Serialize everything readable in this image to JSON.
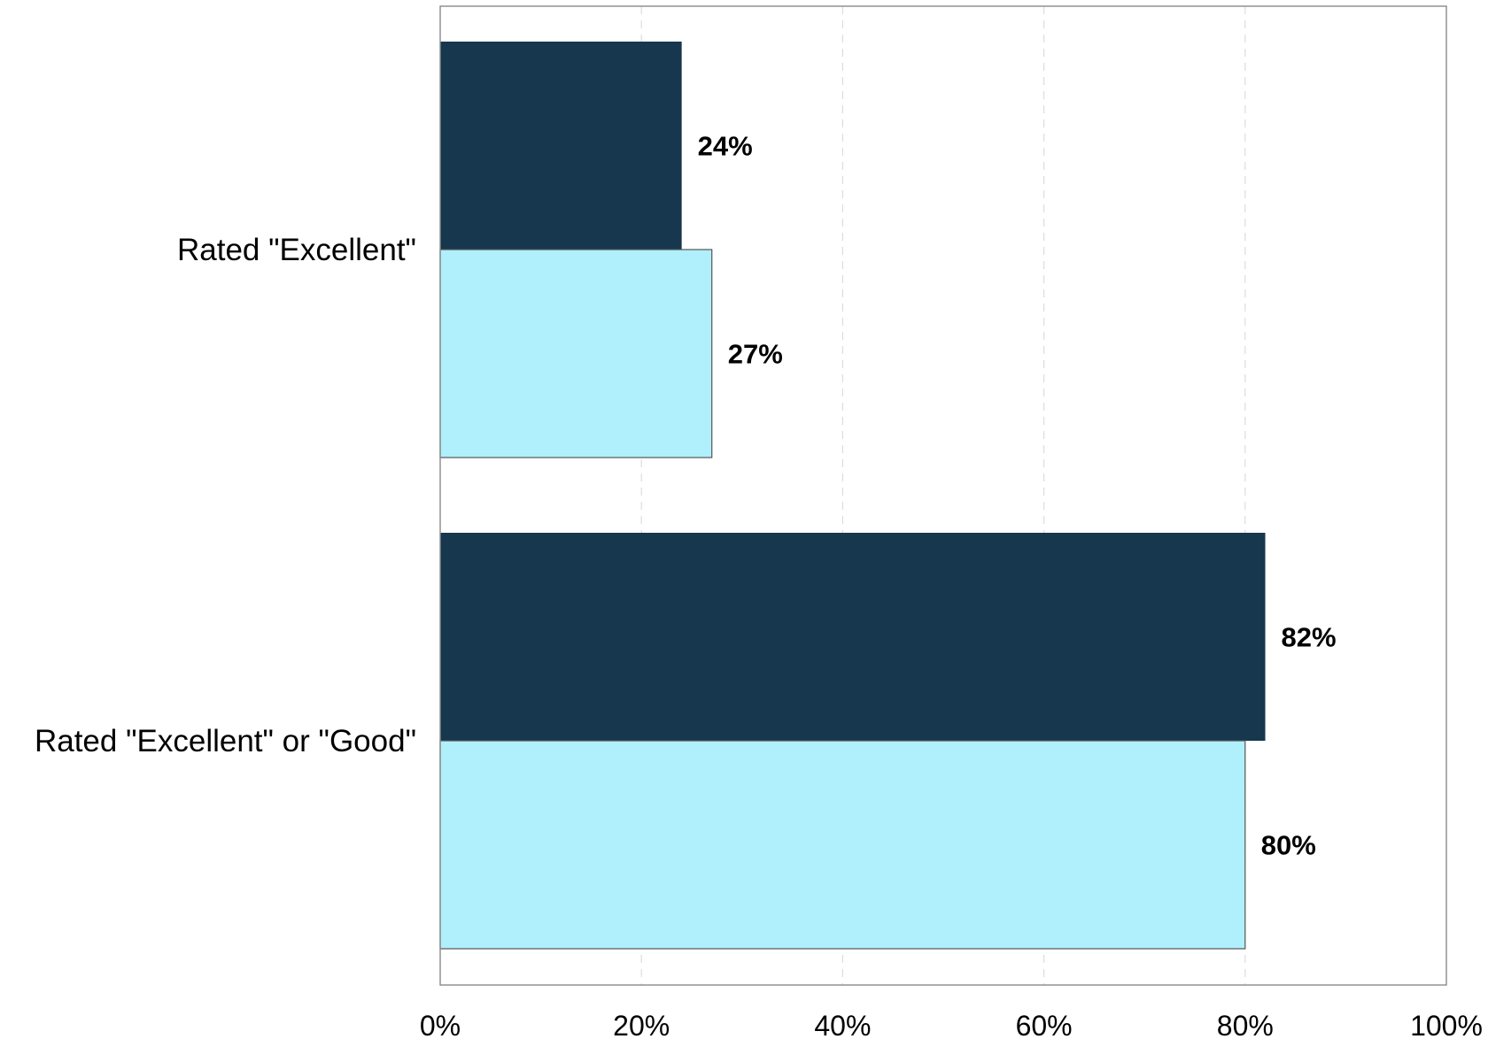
{
  "chart_data": {
    "type": "bar",
    "orientation": "horizontal",
    "categories": [
      "Rated \"Excellent\"",
      "Rated \"Excellent\" or \"Good\""
    ],
    "series": [
      {
        "values": [
          24,
          82
        ],
        "labels": [
          "24%",
          "82%"
        ],
        "color": "#16374d"
      },
      {
        "values": [
          27,
          80
        ],
        "labels": [
          "27%",
          "80%"
        ],
        "color": "#b0effc"
      }
    ],
    "xlim": [
      0,
      100
    ],
    "x_ticks": [
      0,
      20,
      40,
      60,
      80,
      100
    ],
    "x_tick_labels": [
      "0%",
      "20%",
      "40%",
      "60%",
      "80%",
      "100%"
    ],
    "title": "",
    "xlabel": "",
    "ylabel": "",
    "grid": "vertical dashed",
    "legend": "none"
  }
}
